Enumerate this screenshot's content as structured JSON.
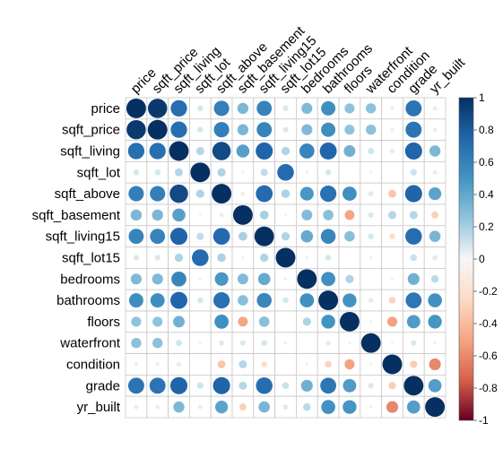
{
  "chart_data": {
    "type": "heatmap",
    "style": "circle",
    "variables": [
      "price",
      "sqft_price",
      "sqft_living",
      "sqft_lot",
      "sqft_above",
      "sqft_basement",
      "sqft_living15",
      "sqft_lot15",
      "bedrooms",
      "bathrooms",
      "floors",
      "waterfront",
      "condition",
      "grade",
      "yr_built"
    ],
    "matrix": [
      [
        1.0,
        0.96,
        0.7,
        0.09,
        0.61,
        0.32,
        0.59,
        0.08,
        0.31,
        0.53,
        0.26,
        0.27,
        0.04,
        0.67,
        0.05
      ],
      [
        0.96,
        1.0,
        0.7,
        0.09,
        0.61,
        0.32,
        0.59,
        0.08,
        0.31,
        0.53,
        0.26,
        0.27,
        0.04,
        0.67,
        0.05
      ],
      [
        0.7,
        0.7,
        1.0,
        0.17,
        0.88,
        0.44,
        0.76,
        0.18,
        0.58,
        0.75,
        0.35,
        0.1,
        -0.06,
        0.76,
        0.32
      ],
      [
        0.09,
        0.09,
        0.17,
        1.0,
        0.18,
        0.02,
        0.14,
        0.72,
        0.03,
        0.09,
        -0.01,
        0.02,
        -0.01,
        0.11,
        0.05
      ],
      [
        0.61,
        0.61,
        0.88,
        0.18,
        1.0,
        -0.05,
        0.73,
        0.19,
        0.48,
        0.69,
        0.52,
        0.07,
        -0.16,
        0.76,
        0.42
      ],
      [
        0.32,
        0.32,
        0.44,
        0.02,
        -0.05,
        1.0,
        0.2,
        0.02,
        0.3,
        0.28,
        -0.25,
        0.08,
        0.17,
        0.17,
        -0.13
      ],
      [
        0.59,
        0.59,
        0.76,
        0.14,
        0.73,
        0.2,
        1.0,
        0.18,
        0.39,
        0.57,
        0.28,
        0.09,
        -0.09,
        0.71,
        0.33
      ],
      [
        0.08,
        0.08,
        0.18,
        0.72,
        0.19,
        0.02,
        0.18,
        1.0,
        0.03,
        0.09,
        -0.01,
        0.03,
        -0.0,
        0.12,
        0.07
      ],
      [
        0.31,
        0.31,
        0.58,
        0.03,
        0.48,
        0.3,
        0.39,
        0.03,
        1.0,
        0.52,
        0.18,
        -0.01,
        0.03,
        0.36,
        0.15
      ],
      [
        0.53,
        0.53,
        0.75,
        0.09,
        0.69,
        0.28,
        0.57,
        0.09,
        0.52,
        1.0,
        0.5,
        0.06,
        -0.12,
        0.66,
        0.51
      ],
      [
        0.26,
        0.26,
        0.35,
        -0.01,
        0.52,
        -0.25,
        0.28,
        -0.01,
        0.18,
        0.5,
        1.0,
        0.02,
        -0.26,
        0.46,
        0.49
      ],
      [
        0.27,
        0.27,
        0.1,
        0.02,
        0.07,
        0.08,
        0.09,
        0.03,
        -0.01,
        0.06,
        0.02,
        1.0,
        0.02,
        0.08,
        -0.03
      ],
      [
        0.04,
        0.04,
        -0.06,
        -0.01,
        -0.16,
        0.17,
        -0.09,
        -0.0,
        0.03,
        -0.12,
        -0.26,
        0.02,
        1.0,
        -0.14,
        -0.36
      ],
      [
        0.67,
        0.67,
        0.76,
        0.11,
        0.76,
        0.17,
        0.71,
        0.12,
        0.36,
        0.66,
        0.46,
        0.08,
        -0.14,
        1.0,
        0.45
      ],
      [
        0.05,
        0.05,
        0.32,
        0.05,
        0.42,
        -0.13,
        0.33,
        0.07,
        0.15,
        0.51,
        0.49,
        -0.03,
        -0.36,
        0.45,
        1.0
      ]
    ],
    "colorbar": {
      "ticks": [
        "1",
        "0.8",
        "0.6",
        "0.4",
        "0.2",
        "0",
        "-0.2",
        "-0.4",
        "-0.6",
        "-0.8",
        "-1"
      ],
      "range": [
        -1,
        1
      ]
    }
  }
}
